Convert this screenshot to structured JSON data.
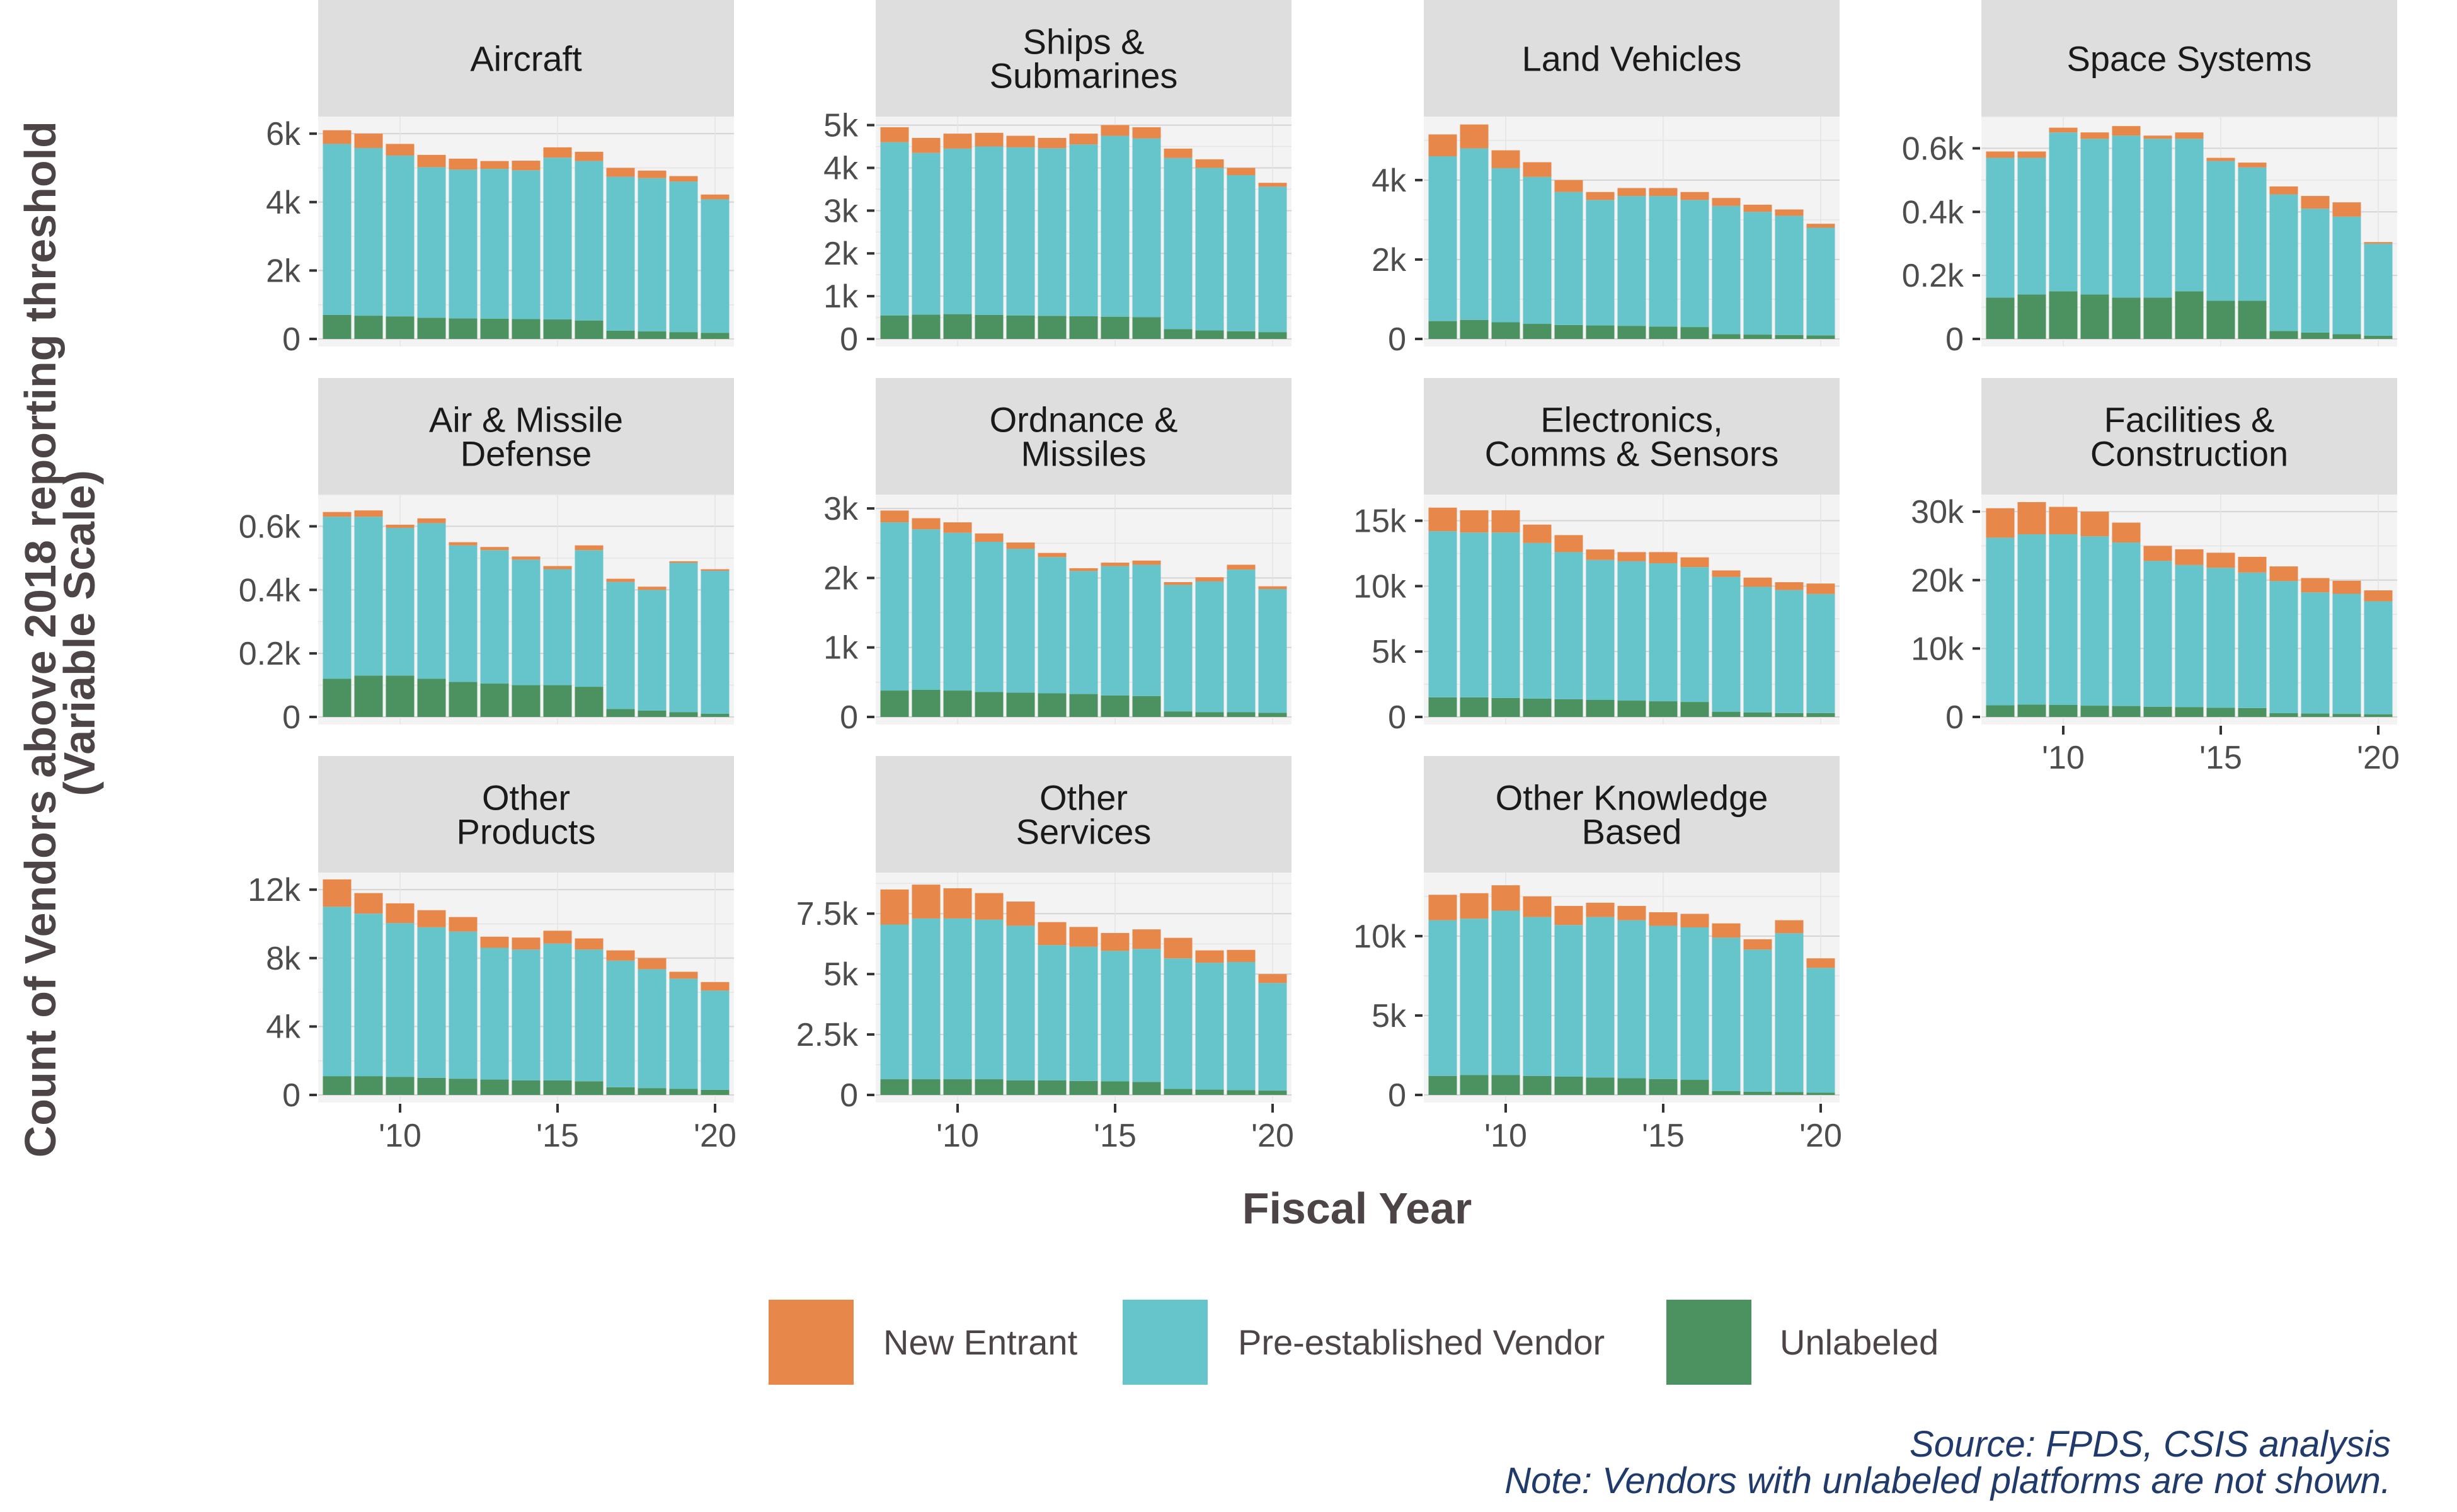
{
  "chart_data": {
    "type": "bar",
    "stacked": true,
    "faceted": true,
    "facet_scales": "free_y",
    "xlabel": "Fiscal Year",
    "ylabel": "Count of Vendors above 2018 reporting threshold\n(Variable Scale)",
    "x": [
      2008,
      2009,
      2010,
      2011,
      2012,
      2013,
      2014,
      2015,
      2016,
      2017,
      2018,
      2019,
      2020
    ],
    "x_ticks": [
      {
        "value": 2010,
        "label": "'10"
      },
      {
        "value": 2015,
        "label": "'15"
      },
      {
        "value": 2020,
        "label": "'20"
      }
    ],
    "series_order": [
      "Unlabeled",
      "Pre-established Vendor",
      "New Entrant"
    ],
    "legend": [
      {
        "name": "New Entrant",
        "color": "#E8874A"
      },
      {
        "name": "Pre-established Vendor",
        "color": "#66C5CB"
      },
      {
        "name": "Unlabeled",
        "color": "#4C9260"
      }
    ],
    "legend_position": "bottom",
    "grid": true,
    "caption": [
      "Source: FPDS, CSIS analysis",
      "Note: Vendors with unlabeled platforms are not shown."
    ],
    "facets": [
      {
        "title": [
          "Aircraft"
        ],
        "ylim": [
          0,
          6500
        ],
        "yticks": [
          {
            "v": 0,
            "l": "0"
          },
          {
            "v": 2000,
            "l": "2k"
          },
          {
            "v": 4000,
            "l": "4k"
          },
          {
            "v": 6000,
            "l": "6k"
          }
        ],
        "series": [
          {
            "name": "Unlabeled",
            "values": [
              700,
              680,
              660,
              620,
              600,
              590,
              580,
              570,
              540,
              240,
              220,
              200,
              180
            ]
          },
          {
            "name": "Pre-established Vendor",
            "values": [
              5000,
              4900,
              4700,
              4400,
              4350,
              4380,
              4350,
              4730,
              4660,
              4500,
              4480,
              4400,
              3900
            ]
          },
          {
            "name": "New Entrant",
            "values": [
              400,
              420,
              340,
              360,
              320,
              230,
              280,
              300,
              270,
              260,
              220,
              160,
              140
            ]
          }
        ]
      },
      {
        "title": [
          "Ships &",
          "Submarines"
        ],
        "ylim": [
          0,
          5200
        ],
        "yticks": [
          {
            "v": 0,
            "l": "0"
          },
          {
            "v": 1000,
            "l": "1k"
          },
          {
            "v": 2000,
            "l": "2k"
          },
          {
            "v": 3000,
            "l": "3k"
          },
          {
            "v": 4000,
            "l": "4k"
          },
          {
            "v": 5000,
            "l": "5k"
          }
        ],
        "series": [
          {
            "name": "Unlabeled",
            "values": [
              550,
              570,
              580,
              560,
              550,
              540,
              530,
              520,
              510,
              230,
              200,
              180,
              160
            ]
          },
          {
            "name": "Pre-established Vendor",
            "values": [
              4050,
              3780,
              3870,
              3940,
              3930,
              3920,
              4020,
              4230,
              4180,
              4000,
              3800,
              3650,
              3400
            ]
          },
          {
            "name": "New Entrant",
            "values": [
              350,
              350,
              350,
              320,
              270,
              240,
              250,
              250,
              260,
              220,
              200,
              170,
              90
            ]
          }
        ]
      },
      {
        "title": [
          "Land Vehicles"
        ],
        "ylim": [
          0,
          5600
        ],
        "yticks": [
          {
            "v": 0,
            "l": "0"
          },
          {
            "v": 2000,
            "l": "2k"
          },
          {
            "v": 4000,
            "l": "4k"
          }
        ],
        "series": [
          {
            "name": "Unlabeled",
            "values": [
              450,
              480,
              420,
              380,
              350,
              340,
              330,
              310,
              300,
              120,
              110,
              100,
              90
            ]
          },
          {
            "name": "Pre-established Vendor",
            "values": [
              4150,
              4320,
              3880,
              3700,
              3350,
              3160,
              3270,
              3290,
              3200,
              3230,
              3090,
              3000,
              2710
            ]
          },
          {
            "name": "New Entrant",
            "values": [
              550,
              600,
              450,
              370,
              300,
              200,
              200,
              200,
              200,
              200,
              180,
              160,
              100
            ]
          }
        ]
      },
      {
        "title": [
          "Space Systems"
        ],
        "ylim": [
          0,
          0.7
        ],
        "yticks": [
          {
            "v": 0,
            "l": "0"
          },
          {
            "v": 0.2,
            "l": "0.2k"
          },
          {
            "v": 0.4,
            "l": "0.4k"
          },
          {
            "v": 0.6,
            "l": "0.6k"
          }
        ],
        "series": [
          {
            "name": "Unlabeled",
            "values": [
              0.13,
              0.14,
              0.15,
              0.14,
              0.13,
              0.13,
              0.15,
              0.12,
              0.12,
              0.025,
              0.02,
              0.015,
              0.01
            ]
          },
          {
            "name": "Pre-established Vendor",
            "values": [
              0.44,
              0.43,
              0.5,
              0.49,
              0.51,
              0.5,
              0.48,
              0.44,
              0.42,
              0.43,
              0.39,
              0.37,
              0.29
            ]
          },
          {
            "name": "New Entrant",
            "values": [
              0.02,
              0.02,
              0.015,
              0.02,
              0.03,
              0.01,
              0.02,
              0.01,
              0.015,
              0.025,
              0.04,
              0.045,
              0.005
            ]
          }
        ]
      },
      {
        "title": [
          "Air & Missile",
          "Defense"
        ],
        "ylim": [
          0,
          0.7
        ],
        "yticks": [
          {
            "v": 0,
            "l": "0"
          },
          {
            "v": 0.2,
            "l": "0.2k"
          },
          {
            "v": 0.4,
            "l": "0.4k"
          },
          {
            "v": 0.6,
            "l": "0.6k"
          }
        ],
        "series": [
          {
            "name": "Unlabeled",
            "values": [
              0.12,
              0.13,
              0.13,
              0.12,
              0.11,
              0.105,
              0.1,
              0.1,
              0.095,
              0.025,
              0.02,
              0.015,
              0.01
            ]
          },
          {
            "name": "Pre-established Vendor",
            "values": [
              0.51,
              0.5,
              0.465,
              0.49,
              0.43,
              0.42,
              0.395,
              0.365,
              0.43,
              0.4,
              0.38,
              0.47,
              0.45
            ]
          },
          {
            "name": "New Entrant",
            "values": [
              0.015,
              0.02,
              0.01,
              0.015,
              0.01,
              0.01,
              0.01,
              0.01,
              0.015,
              0.01,
              0.01,
              0.005,
              0.005
            ]
          }
        ]
      },
      {
        "title": [
          "Ordnance &",
          "Missiles"
        ],
        "ylim": [
          0,
          3200
        ],
        "yticks": [
          {
            "v": 0,
            "l": "0"
          },
          {
            "v": 1000,
            "l": "1k"
          },
          {
            "v": 2000,
            "l": "2k"
          },
          {
            "v": 3000,
            "l": "3k"
          }
        ],
        "series": [
          {
            "name": "Unlabeled",
            "values": [
              380,
              390,
              380,
              360,
              350,
              340,
              330,
              310,
              300,
              80,
              70,
              70,
              60
            ]
          },
          {
            "name": "Pre-established Vendor",
            "values": [
              2420,
              2310,
              2270,
              2160,
              2070,
              1960,
              1770,
              1860,
              1890,
              1820,
              1880,
              2050,
              1780
            ]
          },
          {
            "name": "New Entrant",
            "values": [
              170,
              160,
              150,
              120,
              90,
              60,
              40,
              50,
              60,
              40,
              60,
              70,
              40
            ]
          }
        ]
      },
      {
        "title": [
          "Electronics,",
          "Comms & Sensors"
        ],
        "ylim": [
          0,
          17000
        ],
        "yticks": [
          {
            "v": 0,
            "l": "0"
          },
          {
            "v": 5000,
            "l": "5k"
          },
          {
            "v": 10000,
            "l": "10k"
          },
          {
            "v": 15000,
            "l": "15k"
          }
        ],
        "series": [
          {
            "name": "Unlabeled",
            "values": [
              1500,
              1500,
              1450,
              1400,
              1350,
              1300,
              1250,
              1200,
              1150,
              400,
              350,
              300,
              300
            ]
          },
          {
            "name": "Pre-established Vendor",
            "values": [
              12700,
              12600,
              12650,
              11900,
              11250,
              10700,
              10650,
              10550,
              10300,
              10300,
              9600,
              9400,
              9100
            ]
          },
          {
            "name": "New Entrant",
            "values": [
              1800,
              1700,
              1700,
              1400,
              1300,
              800,
              700,
              850,
              750,
              500,
              700,
              600,
              800
            ]
          }
        ]
      },
      {
        "title": [
          "Facilities &",
          "Construction"
        ],
        "ylim": [
          0,
          32500
        ],
        "yticks": [
          {
            "v": 0,
            "l": "0"
          },
          {
            "v": 10000,
            "l": "10k"
          },
          {
            "v": 20000,
            "l": "20k"
          },
          {
            "v": 30000,
            "l": "30k"
          }
        ],
        "series": [
          {
            "name": "Unlabeled",
            "values": [
              1700,
              1800,
              1750,
              1650,
              1600,
              1500,
              1450,
              1350,
              1300,
              550,
              500,
              450,
              400
            ]
          },
          {
            "name": "Pre-established Vendor",
            "values": [
              24500,
              24900,
              24950,
              24750,
              23900,
              21300,
              20750,
              20450,
              19800,
              19300,
              17700,
              17550,
              16500
            ]
          },
          {
            "name": "New Entrant",
            "values": [
              4300,
              4700,
              4000,
              3600,
              2900,
              2200,
              2300,
              2200,
              2300,
              2150,
              2100,
              1900,
              1600
            ]
          }
        ]
      },
      {
        "title": [
          "Other",
          "Products"
        ],
        "ylim": [
          0,
          13000
        ],
        "yticks": [
          {
            "v": 0,
            "l": "0"
          },
          {
            "v": 4000,
            "l": "4k"
          },
          {
            "v": 8000,
            "l": "8k"
          },
          {
            "v": 12000,
            "l": "12k"
          }
        ],
        "series": [
          {
            "name": "Unlabeled",
            "values": [
              1100,
              1100,
              1050,
              1000,
              950,
              900,
              850,
              850,
              800,
              450,
              400,
              350,
              300
            ]
          },
          {
            "name": "Pre-established Vendor",
            "values": [
              9900,
              9500,
              9000,
              8800,
              8600,
              7700,
              7650,
              8000,
              7700,
              7400,
              6950,
              6450,
              5800
            ]
          },
          {
            "name": "New Entrant",
            "values": [
              1600,
              1200,
              1150,
              1000,
              850,
              650,
              700,
              750,
              650,
              600,
              650,
              400,
              500
            ]
          }
        ]
      },
      {
        "title": [
          "Other",
          "Services"
        ],
        "ylim": [
          0,
          9200
        ],
        "yticks": [
          {
            "v": 0,
            "l": "0"
          },
          {
            "v": 2500,
            "l": "2.5k"
          },
          {
            "v": 5000,
            "l": "5k"
          },
          {
            "v": 7500,
            "l": "7.5k"
          }
        ],
        "series": [
          {
            "name": "Unlabeled",
            "values": [
              650,
              650,
              650,
              650,
              600,
              600,
              580,
              560,
              540,
              250,
              220,
              200,
              180
            ]
          },
          {
            "name": "Pre-established Vendor",
            "values": [
              6400,
              6650,
              6650,
              6600,
              6400,
              5600,
              5550,
              5400,
              5500,
              5400,
              5250,
              5300,
              4450
            ]
          },
          {
            "name": "New Entrant",
            "values": [
              1450,
              1400,
              1250,
              1100,
              1000,
              950,
              820,
              740,
              810,
              850,
              510,
              500,
              370
            ]
          }
        ]
      },
      {
        "title": [
          "Other Knowledge",
          "Based"
        ],
        "ylim": [
          0,
          14000
        ],
        "yticks": [
          {
            "v": 0,
            "l": "0"
          },
          {
            "v": 5000,
            "l": "5k"
          },
          {
            "v": 10000,
            "l": "10k"
          }
        ],
        "series": [
          {
            "name": "Unlabeled",
            "values": [
              1200,
              1250,
              1250,
              1200,
              1150,
              1100,
              1050,
              1000,
              950,
              250,
              200,
              180,
              150
            ]
          },
          {
            "name": "Pre-established Vendor",
            "values": [
              9800,
              9850,
              10350,
              10000,
              9550,
              10100,
              9950,
              9650,
              9600,
              9650,
              8950,
              10000,
              7850
            ]
          },
          {
            "name": "New Entrant",
            "values": [
              1600,
              1600,
              1600,
              1300,
              1200,
              900,
              900,
              850,
              850,
              900,
              650,
              820,
              600
            ]
          }
        ]
      }
    ]
  }
}
